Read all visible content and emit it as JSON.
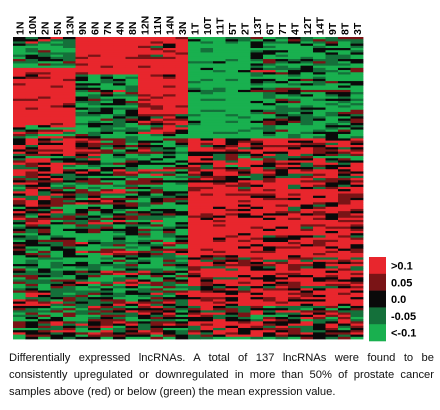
{
  "chart_data": {
    "type": "heatmap",
    "title": "",
    "columns": [
      "1N",
      "10N",
      "2N",
      "5N",
      "13N",
      "9N",
      "6N",
      "7N",
      "4N",
      "8N",
      "12N",
      "11N",
      "14N",
      "3N",
      "1T",
      "10T",
      "11T",
      "5T",
      "2T",
      "13T",
      "6T",
      "7T",
      "4T",
      "12T",
      "14T",
      "9T",
      "8T",
      "3T"
    ],
    "n_rows": 137,
    "scale": {
      "legend_labels": [
        ">0.1",
        "0.05",
        "0.0",
        "-0.05",
        "<-0.1"
      ],
      "colors": [
        "#e8262d",
        "#7a1416",
        "#0a0a0a",
        "#14703a",
        "#19b04f"
      ]
    },
    "pattern": "Block pattern: normal (N) samples show regions of red (above mean) in upper rows and green below; tumor (T) samples show green in upper rows and red in lower rows."
  },
  "caption": "Differentially expressed lncRNAs. A total of 137 lncRNAs were found to be consistently upregulated or downregulated in more than 50% of prostate cancer samples above (red) or below (green) the mean expression value."
}
